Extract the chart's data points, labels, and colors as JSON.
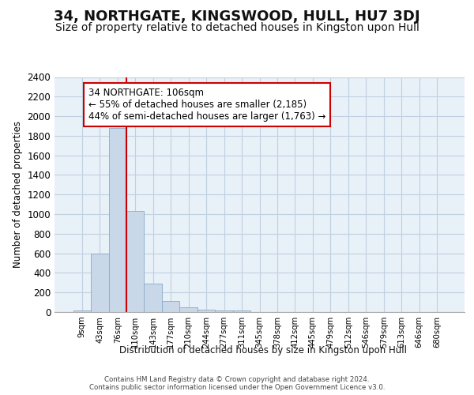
{
  "title": "34, NORTHGATE, KINGSWOOD, HULL, HU7 3DJ",
  "subtitle": "Size of property relative to detached houses in Kingston upon Hull",
  "xlabel_bottom": "Distribution of detached houses by size in Kingston upon Hull",
  "ylabel": "Number of detached properties",
  "footer1": "Contains HM Land Registry data © Crown copyright and database right 2024.",
  "footer2": "Contains public sector information licensed under the Open Government Licence v3.0.",
  "tick_labels": [
    "9sqm",
    "43sqm",
    "76sqm",
    "110sqm",
    "143sqm",
    "177sqm",
    "210sqm",
    "244sqm",
    "277sqm",
    "311sqm",
    "345sqm",
    "378sqm",
    "412sqm",
    "445sqm",
    "479sqm",
    "512sqm",
    "546sqm",
    "579sqm",
    "613sqm",
    "646sqm",
    "680sqm"
  ],
  "bar_values": [
    20,
    600,
    1880,
    1030,
    290,
    110,
    45,
    25,
    15,
    15,
    0,
    0,
    0,
    0,
    0,
    0,
    0,
    0,
    0,
    0,
    0
  ],
  "bar_color": "#c8d8e8",
  "bar_edge_color": "#8aaac8",
  "annotation_line1": "34 NORTHGATE: 106sqm",
  "annotation_line2": "← 55% of detached houses are smaller (2,185)",
  "annotation_line3": "44% of semi-detached houses are larger (1,763) →",
  "vline_x": 2.5,
  "vline_color": "#cc0000",
  "annotation_box_edge": "#cc0000",
  "ylim": [
    0,
    2400
  ],
  "yticks": [
    0,
    200,
    400,
    600,
    800,
    1000,
    1200,
    1400,
    1600,
    1800,
    2000,
    2200,
    2400
  ],
  "grid_color": "#c0d0e0",
  "bg_color": "#e8f0f8",
  "title_fontsize": 13,
  "subtitle_fontsize": 10,
  "annotation_fontsize": 8.5
}
